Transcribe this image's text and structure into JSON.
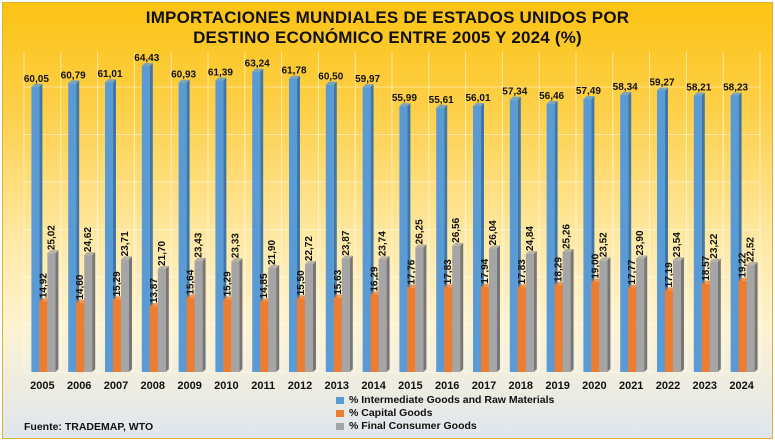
{
  "chart_data": {
    "type": "bar",
    "title": "IMPORTACIONES MUNDIALES DE ESTADOS UNIDOS POR DESTINO ECONÓMICO ENTRE 2005 Y 2024 (%)",
    "title_lines": [
      "IMPORTACIONES MUNDIALES DE ESTADOS UNIDOS POR",
      "DESTINO ECONÓMICO ENTRE 2005 Y 2024 (%)"
    ],
    "xlabel": "",
    "ylabel": "",
    "ylim": [
      0,
      70
    ],
    "grid": true,
    "legend_position": "bottom",
    "categories": [
      "2005",
      "2006",
      "2007",
      "2008",
      "2009",
      "2010",
      "2011",
      "2012",
      "2013",
      "2014",
      "2015",
      "2016",
      "2017",
      "2018",
      "2019",
      "2020",
      "2021",
      "2022",
      "2023",
      "2024"
    ],
    "series": [
      {
        "name": "% Intermediate Goods and Raw Materials",
        "color": "#5b9bd5",
        "values": [
          60.05,
          60.79,
          61.01,
          64.43,
          60.93,
          61.39,
          63.24,
          61.78,
          60.5,
          59.97,
          55.99,
          55.61,
          56.01,
          57.34,
          56.46,
          57.49,
          58.34,
          59.27,
          58.21,
          58.23
        ],
        "labels": [
          "60,05",
          "60,79",
          "61,01",
          "64,43",
          "60,93",
          "61,39",
          "63,24",
          "61,78",
          "60,50",
          "59,97",
          "55,99",
          "55,61",
          "56,01",
          "57,34",
          "56,46",
          "57,49",
          "58,34",
          "59,27",
          "58,21",
          "58,23"
        ]
      },
      {
        "name": "% Capital Goods",
        "color": "#ed7d31",
        "values": [
          14.92,
          14.6,
          15.29,
          13.87,
          15.64,
          15.29,
          14.85,
          15.5,
          15.63,
          16.29,
          17.76,
          17.83,
          17.94,
          17.83,
          18.29,
          19.0,
          17.77,
          17.19,
          18.57,
          19.22
        ],
        "labels": [
          "14,92",
          "14,60",
          "15,29",
          "13,87",
          "15,64",
          "15,29",
          "14,85",
          "15,50",
          "15,63",
          "16,29",
          "17,76",
          "17,83",
          "17,94",
          "17,83",
          "18,29",
          "19,00",
          "17,77",
          "17,19",
          "18,57",
          "19,22"
        ]
      },
      {
        "name": "% Final Consumer Goods",
        "color": "#a5a5a5",
        "values": [
          25.02,
          24.62,
          23.71,
          21.7,
          23.43,
          23.33,
          21.9,
          22.72,
          23.87,
          23.74,
          26.25,
          26.56,
          26.04,
          24.84,
          25.26,
          23.52,
          23.9,
          23.54,
          23.22,
          22.52
        ],
        "labels": [
          "25,02",
          "24,62",
          "23,71",
          "21,70",
          "23,43",
          "23,33",
          "21,90",
          "22,72",
          "23,87",
          "23,74",
          "26,25",
          "26,56",
          "26,04",
          "24,84",
          "25,26",
          "23,52",
          "23,90",
          "23,54",
          "23,22",
          "22,52"
        ]
      }
    ],
    "source": "Fuente: TRADEMAP, WTO"
  }
}
